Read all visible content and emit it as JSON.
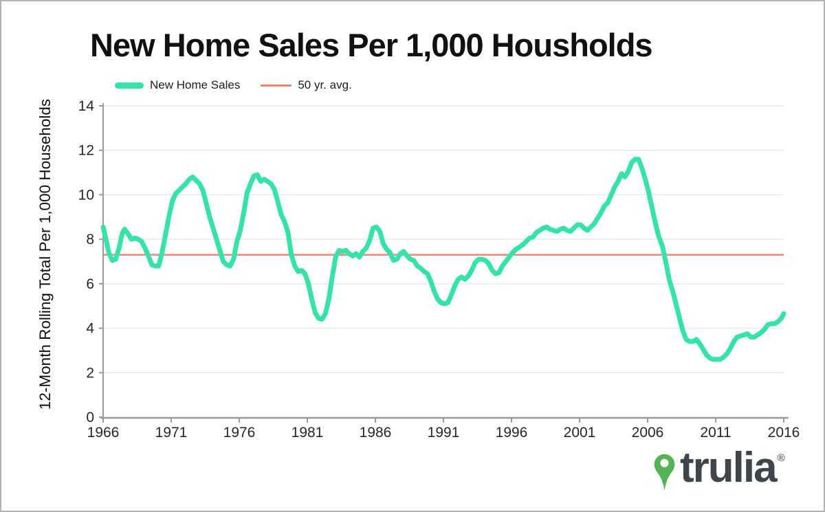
{
  "page": {
    "title": "New Home Sales Per 1,000 Housholds"
  },
  "colors": {
    "line": "#35e3aa",
    "avg_line": "#f58768",
    "grid": "#eaeaea",
    "axis": "#9a9a9a",
    "tick_text": "#262626",
    "logo_green": "#54b455",
    "logo_dark": "#3e464c"
  },
  "logo": {
    "brand": "trulia",
    "registered": "®"
  },
  "chart_data": {
    "type": "line",
    "title": "New Home Sales Per 1,000 Housholds",
    "xlabel": "",
    "ylabel": "12-Month Rolling Total Per 1,000 Households",
    "xlim": [
      1966,
      2016
    ],
    "ylim": [
      0,
      14
    ],
    "x_ticks": [
      1966,
      1971,
      1976,
      1981,
      1986,
      1991,
      1996,
      2001,
      2006,
      2011,
      2016
    ],
    "y_ticks": [
      0,
      2,
      4,
      6,
      8,
      10,
      12,
      14
    ],
    "grid": true,
    "legend_position": "top-left",
    "series": [
      {
        "name": "New Home Sales",
        "color": "#35e3aa",
        "stroke_width": 7,
        "points": [
          [
            1966.0,
            8.55
          ],
          [
            1966.17,
            8.1
          ],
          [
            1966.42,
            7.4
          ],
          [
            1966.67,
            7.05
          ],
          [
            1966.92,
            7.1
          ],
          [
            1967.17,
            7.6
          ],
          [
            1967.42,
            8.3
          ],
          [
            1967.58,
            8.45
          ],
          [
            1967.83,
            8.25
          ],
          [
            1968.08,
            8.0
          ],
          [
            1968.33,
            8.05
          ],
          [
            1968.58,
            8.0
          ],
          [
            1968.83,
            7.9
          ],
          [
            1969.08,
            7.6
          ],
          [
            1969.33,
            7.25
          ],
          [
            1969.58,
            6.85
          ],
          [
            1969.83,
            6.8
          ],
          [
            1970.08,
            6.8
          ],
          [
            1970.33,
            7.4
          ],
          [
            1970.58,
            8.2
          ],
          [
            1970.83,
            9.0
          ],
          [
            1971.08,
            9.7
          ],
          [
            1971.33,
            10.05
          ],
          [
            1971.58,
            10.2
          ],
          [
            1971.83,
            10.35
          ],
          [
            1972.08,
            10.5
          ],
          [
            1972.33,
            10.7
          ],
          [
            1972.58,
            10.8
          ],
          [
            1972.83,
            10.65
          ],
          [
            1973.08,
            10.5
          ],
          [
            1973.33,
            10.2
          ],
          [
            1973.58,
            9.6
          ],
          [
            1973.83,
            9.0
          ],
          [
            1974.08,
            8.5
          ],
          [
            1974.33,
            8.0
          ],
          [
            1974.58,
            7.5
          ],
          [
            1974.83,
            7.0
          ],
          [
            1975.08,
            6.85
          ],
          [
            1975.33,
            6.8
          ],
          [
            1975.58,
            7.1
          ],
          [
            1975.83,
            7.9
          ],
          [
            1976.08,
            8.4
          ],
          [
            1976.33,
            9.2
          ],
          [
            1976.58,
            10.1
          ],
          [
            1976.83,
            10.5
          ],
          [
            1977.08,
            10.85
          ],
          [
            1977.33,
            10.9
          ],
          [
            1977.58,
            10.6
          ],
          [
            1977.83,
            10.7
          ],
          [
            1978.08,
            10.6
          ],
          [
            1978.33,
            10.5
          ],
          [
            1978.58,
            10.25
          ],
          [
            1978.83,
            9.7
          ],
          [
            1979.08,
            9.1
          ],
          [
            1979.33,
            8.8
          ],
          [
            1979.58,
            8.3
          ],
          [
            1979.83,
            7.3
          ],
          [
            1980.08,
            6.8
          ],
          [
            1980.33,
            6.55
          ],
          [
            1980.58,
            6.6
          ],
          [
            1980.83,
            6.45
          ],
          [
            1981.08,
            6.0
          ],
          [
            1981.33,
            5.3
          ],
          [
            1981.58,
            4.7
          ],
          [
            1981.83,
            4.45
          ],
          [
            1982.08,
            4.4
          ],
          [
            1982.33,
            4.65
          ],
          [
            1982.58,
            5.3
          ],
          [
            1982.83,
            6.3
          ],
          [
            1983.08,
            7.2
          ],
          [
            1983.33,
            7.5
          ],
          [
            1983.58,
            7.45
          ],
          [
            1983.83,
            7.5
          ],
          [
            1984.08,
            7.35
          ],
          [
            1984.33,
            7.25
          ],
          [
            1984.58,
            7.35
          ],
          [
            1984.83,
            7.2
          ],
          [
            1985.08,
            7.45
          ],
          [
            1985.33,
            7.6
          ],
          [
            1985.58,
            7.95
          ],
          [
            1985.83,
            8.5
          ],
          [
            1986.08,
            8.55
          ],
          [
            1986.33,
            8.35
          ],
          [
            1986.58,
            7.8
          ],
          [
            1986.83,
            7.55
          ],
          [
            1987.08,
            7.4
          ],
          [
            1987.33,
            7.05
          ],
          [
            1987.58,
            7.1
          ],
          [
            1987.83,
            7.35
          ],
          [
            1988.08,
            7.45
          ],
          [
            1988.33,
            7.25
          ],
          [
            1988.58,
            7.1
          ],
          [
            1988.83,
            7.05
          ],
          [
            1989.08,
            6.8
          ],
          [
            1989.33,
            6.7
          ],
          [
            1989.58,
            6.55
          ],
          [
            1989.83,
            6.45
          ],
          [
            1990.08,
            6.1
          ],
          [
            1990.33,
            5.65
          ],
          [
            1990.58,
            5.3
          ],
          [
            1990.83,
            5.15
          ],
          [
            1991.08,
            5.1
          ],
          [
            1991.33,
            5.15
          ],
          [
            1991.58,
            5.5
          ],
          [
            1991.83,
            5.9
          ],
          [
            1992.08,
            6.2
          ],
          [
            1992.33,
            6.3
          ],
          [
            1992.58,
            6.2
          ],
          [
            1992.83,
            6.35
          ],
          [
            1993.08,
            6.6
          ],
          [
            1993.33,
            6.95
          ],
          [
            1993.58,
            7.1
          ],
          [
            1993.83,
            7.1
          ],
          [
            1994.08,
            7.05
          ],
          [
            1994.33,
            6.9
          ],
          [
            1994.58,
            6.6
          ],
          [
            1994.83,
            6.45
          ],
          [
            1995.08,
            6.5
          ],
          [
            1995.33,
            6.8
          ],
          [
            1995.58,
            7.0
          ],
          [
            1995.83,
            7.2
          ],
          [
            1996.08,
            7.4
          ],
          [
            1996.33,
            7.55
          ],
          [
            1996.58,
            7.65
          ],
          [
            1996.83,
            7.75
          ],
          [
            1997.08,
            7.9
          ],
          [
            1997.33,
            8.05
          ],
          [
            1997.58,
            8.1
          ],
          [
            1997.83,
            8.3
          ],
          [
            1998.08,
            8.4
          ],
          [
            1998.33,
            8.5
          ],
          [
            1998.58,
            8.55
          ],
          [
            1998.83,
            8.45
          ],
          [
            1999.08,
            8.4
          ],
          [
            1999.33,
            8.35
          ],
          [
            1999.58,
            8.45
          ],
          [
            1999.83,
            8.5
          ],
          [
            2000.08,
            8.4
          ],
          [
            2000.33,
            8.35
          ],
          [
            2000.58,
            8.5
          ],
          [
            2000.83,
            8.65
          ],
          [
            2001.08,
            8.65
          ],
          [
            2001.33,
            8.5
          ],
          [
            2001.58,
            8.4
          ],
          [
            2001.83,
            8.55
          ],
          [
            2002.08,
            8.7
          ],
          [
            2002.33,
            8.95
          ],
          [
            2002.58,
            9.2
          ],
          [
            2002.83,
            9.5
          ],
          [
            2003.08,
            9.65
          ],
          [
            2003.33,
            10.0
          ],
          [
            2003.58,
            10.35
          ],
          [
            2003.83,
            10.6
          ],
          [
            2004.08,
            10.95
          ],
          [
            2004.33,
            10.8
          ],
          [
            2004.58,
            11.05
          ],
          [
            2004.83,
            11.45
          ],
          [
            2005.08,
            11.6
          ],
          [
            2005.33,
            11.6
          ],
          [
            2005.58,
            11.2
          ],
          [
            2005.83,
            10.7
          ],
          [
            2006.08,
            10.1
          ],
          [
            2006.33,
            9.4
          ],
          [
            2006.58,
            8.7
          ],
          [
            2006.83,
            8.1
          ],
          [
            2007.08,
            7.7
          ],
          [
            2007.33,
            7.0
          ],
          [
            2007.58,
            6.2
          ],
          [
            2007.83,
            5.7
          ],
          [
            2008.08,
            5.1
          ],
          [
            2008.33,
            4.5
          ],
          [
            2008.58,
            3.9
          ],
          [
            2008.83,
            3.5
          ],
          [
            2009.08,
            3.4
          ],
          [
            2009.33,
            3.4
          ],
          [
            2009.58,
            3.5
          ],
          [
            2009.83,
            3.3
          ],
          [
            2010.08,
            3.05
          ],
          [
            2010.33,
            2.8
          ],
          [
            2010.58,
            2.65
          ],
          [
            2010.83,
            2.6
          ],
          [
            2011.08,
            2.6
          ],
          [
            2011.33,
            2.6
          ],
          [
            2011.58,
            2.7
          ],
          [
            2011.83,
            2.85
          ],
          [
            2012.08,
            3.1
          ],
          [
            2012.33,
            3.4
          ],
          [
            2012.58,
            3.6
          ],
          [
            2012.83,
            3.65
          ],
          [
            2013.08,
            3.7
          ],
          [
            2013.33,
            3.75
          ],
          [
            2013.58,
            3.6
          ],
          [
            2013.83,
            3.6
          ],
          [
            2014.08,
            3.7
          ],
          [
            2014.33,
            3.8
          ],
          [
            2014.58,
            3.95
          ],
          [
            2014.83,
            4.15
          ],
          [
            2015.08,
            4.2
          ],
          [
            2015.33,
            4.2
          ],
          [
            2015.58,
            4.3
          ],
          [
            2015.83,
            4.45
          ],
          [
            2016.0,
            4.65
          ]
        ]
      },
      {
        "name": "50 yr. avg.",
        "color": "#f58768",
        "stroke_width": 2.5,
        "hline": 7.3
      }
    ]
  }
}
